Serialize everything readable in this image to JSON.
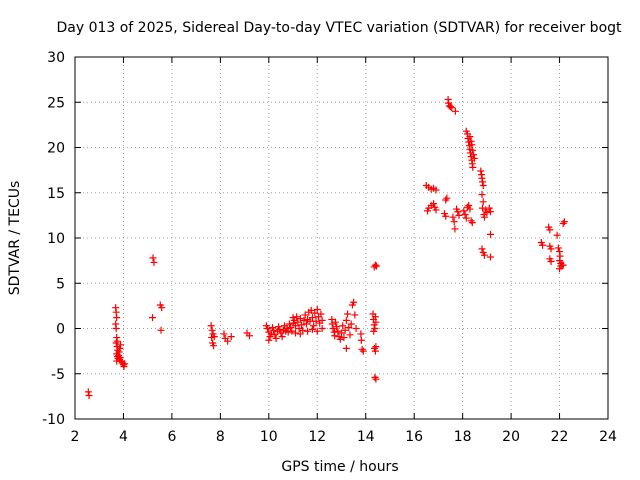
{
  "chart_data": {
    "type": "scatter",
    "title": "Day 013 of 2025, Sidereal Day-to-day VTEC variation (SDTVAR) for receiver bogt",
    "xlabel": "GPS time / hours",
    "ylabel": "SDTVAR / TECUs",
    "xlim": [
      2,
      24
    ],
    "ylim": [
      -10,
      30
    ],
    "xticks": [
      2,
      4,
      6,
      8,
      10,
      12,
      14,
      16,
      18,
      20,
      22,
      24
    ],
    "yticks": [
      -10,
      -5,
      0,
      5,
      10,
      15,
      20,
      25,
      30
    ],
    "grid": true,
    "marker": "plus",
    "color": "#ff0000",
    "series": [
      {
        "name": "SDTVAR",
        "points": [
          [
            2.55,
            -7.0
          ],
          [
            2.58,
            -7.4
          ],
          [
            3.68,
            2.3
          ],
          [
            3.7,
            1.8
          ],
          [
            3.72,
            1.2
          ],
          [
            3.68,
            0.5
          ],
          [
            3.7,
            0.0
          ],
          [
            3.72,
            -1.0
          ],
          [
            3.7,
            -1.6
          ],
          [
            3.74,
            -2.0
          ],
          [
            3.76,
            -2.4
          ],
          [
            3.72,
            -2.8
          ],
          [
            3.75,
            -3.1
          ],
          [
            3.78,
            -3.3
          ],
          [
            3.72,
            -3.6
          ],
          [
            3.8,
            -3.0
          ],
          [
            3.82,
            -2.6
          ],
          [
            3.85,
            -2.2
          ],
          [
            3.88,
            -1.8
          ],
          [
            3.84,
            -3.4
          ],
          [
            3.9,
            -3.6
          ],
          [
            3.95,
            -3.8
          ],
          [
            4.0,
            -4.0
          ],
          [
            4.05,
            -3.9
          ],
          [
            4.02,
            -4.2
          ],
          [
            3.86,
            -3.2
          ],
          [
            3.74,
            -1.4
          ],
          [
            5.22,
            7.8
          ],
          [
            5.26,
            7.3
          ],
          [
            5.2,
            1.2
          ],
          [
            5.52,
            2.6
          ],
          [
            5.58,
            2.3
          ],
          [
            5.55,
            -0.2
          ],
          [
            7.62,
            0.3
          ],
          [
            7.66,
            -0.2
          ],
          [
            7.7,
            -0.6
          ],
          [
            7.64,
            -1.0
          ],
          [
            7.68,
            -1.6
          ],
          [
            7.72,
            -1.9
          ],
          [
            7.75,
            -0.9
          ],
          [
            8.15,
            -0.6
          ],
          [
            8.2,
            -1.1
          ],
          [
            8.3,
            -1.4
          ],
          [
            8.45,
            -0.9
          ],
          [
            9.1,
            -0.5
          ],
          [
            9.2,
            -0.8
          ],
          [
            9.9,
            0.3
          ],
          [
            9.95,
            0.0
          ],
          [
            10.0,
            -0.4
          ],
          [
            10.05,
            -0.9
          ],
          [
            10.0,
            -1.3
          ],
          [
            10.1,
            -0.6
          ],
          [
            10.15,
            0.1
          ],
          [
            10.2,
            -0.2
          ],
          [
            10.25,
            -0.7
          ],
          [
            10.3,
            -1.1
          ],
          [
            10.35,
            -0.3
          ],
          [
            10.4,
            0.2
          ],
          [
            10.45,
            -0.1
          ],
          [
            10.5,
            -0.5
          ],
          [
            10.55,
            -0.9
          ],
          [
            10.6,
            -0.2
          ],
          [
            10.65,
            0.3
          ],
          [
            10.7,
            -0.3
          ],
          [
            10.75,
            0.0
          ],
          [
            10.8,
            -0.4
          ],
          [
            10.85,
            0.5
          ],
          [
            10.9,
            0.1
          ],
          [
            10.95,
            -0.3
          ],
          [
            11.0,
            1.2
          ],
          [
            11.02,
            0.6
          ],
          [
            11.05,
            0.9
          ],
          [
            11.1,
            0.3
          ],
          [
            11.15,
            1.3
          ],
          [
            11.2,
            0.7
          ],
          [
            11.25,
            0.0
          ],
          [
            11.3,
            1.1
          ],
          [
            11.35,
            0.4
          ],
          [
            11.4,
            -0.2
          ],
          [
            11.45,
            0.9
          ],
          [
            11.5,
            1.5
          ],
          [
            11.55,
            0.5
          ],
          [
            11.6,
            1.0
          ],
          [
            11.65,
            1.8
          ],
          [
            11.7,
            0.8
          ],
          [
            11.75,
            2.0
          ],
          [
            11.8,
            1.2
          ],
          [
            11.85,
            0.3
          ],
          [
            11.9,
            1.7
          ],
          [
            11.95,
            0.8
          ],
          [
            12.0,
            2.1
          ],
          [
            12.05,
            1.3
          ],
          [
            12.1,
            0.6
          ],
          [
            12.15,
            1.6
          ],
          [
            12.2,
            0.9
          ],
          [
            11.1,
            -0.5
          ],
          [
            11.3,
            -0.6
          ],
          [
            11.6,
            -0.3
          ],
          [
            11.8,
            -0.1
          ],
          [
            12.0,
            -0.3
          ],
          [
            12.2,
            0.0
          ],
          [
            12.6,
            1.0
          ],
          [
            12.62,
            0.5
          ],
          [
            12.65,
            0.0
          ],
          [
            12.7,
            -0.4
          ],
          [
            12.72,
            -0.8
          ],
          [
            12.75,
            0.7
          ],
          [
            12.8,
            0.2
          ],
          [
            12.85,
            -0.3
          ],
          [
            12.9,
            -0.9
          ],
          [
            12.95,
            -1.2
          ],
          [
            13.0,
            -0.5
          ],
          [
            13.05,
            0.3
          ],
          [
            13.1,
            -1.0
          ],
          [
            13.15,
            -0.2
          ],
          [
            13.2,
            0.9
          ],
          [
            13.25,
            1.6
          ],
          [
            13.3,
            0.1
          ],
          [
            13.35,
            -0.7
          ],
          [
            13.4,
            0.5
          ],
          [
            13.45,
            2.6
          ],
          [
            13.5,
            2.9
          ],
          [
            13.55,
            1.5
          ],
          [
            13.6,
            0.0
          ],
          [
            13.8,
            -0.6
          ],
          [
            13.82,
            -1.3
          ],
          [
            13.85,
            -2.3
          ],
          [
            13.9,
            -2.5
          ],
          [
            13.2,
            -2.2
          ],
          [
            14.3,
            1.6
          ],
          [
            14.32,
            1.0
          ],
          [
            14.35,
            0.4
          ],
          [
            14.33,
            -0.3
          ],
          [
            14.38,
            0.0
          ],
          [
            14.4,
            1.3
          ],
          [
            14.42,
            0.7
          ],
          [
            14.36,
            -2.2
          ],
          [
            14.4,
            -2.5
          ],
          [
            14.42,
            -2.0
          ],
          [
            14.38,
            -5.4
          ],
          [
            14.42,
            -5.6
          ],
          [
            14.35,
            6.8
          ],
          [
            14.4,
            7.0
          ],
          [
            14.44,
            6.9
          ],
          [
            16.5,
            15.8
          ],
          [
            16.6,
            15.6
          ],
          [
            16.7,
            15.4
          ],
          [
            16.8,
            15.5
          ],
          [
            16.9,
            15.3
          ],
          [
            16.55,
            13.0
          ],
          [
            16.6,
            13.3
          ],
          [
            16.7,
            13.6
          ],
          [
            16.8,
            13.8
          ],
          [
            16.85,
            13.4
          ],
          [
            16.9,
            13.1
          ],
          [
            17.3,
            14.2
          ],
          [
            17.35,
            14.4
          ],
          [
            17.25,
            12.7
          ],
          [
            17.3,
            12.4
          ],
          [
            17.4,
            25.3
          ],
          [
            17.42,
            24.9
          ],
          [
            17.45,
            24.6
          ],
          [
            17.5,
            24.5
          ],
          [
            17.55,
            24.4
          ],
          [
            17.7,
            24.0
          ],
          [
            17.6,
            12.3
          ],
          [
            17.65,
            11.8
          ],
          [
            17.68,
            11.0
          ],
          [
            17.75,
            13.2
          ],
          [
            17.8,
            12.9
          ],
          [
            17.85,
            12.5
          ],
          [
            18.05,
            13.0
          ],
          [
            18.1,
            12.6
          ],
          [
            18.15,
            12.2
          ],
          [
            18.2,
            13.4
          ],
          [
            18.25,
            13.6
          ],
          [
            18.3,
            13.2
          ],
          [
            18.35,
            11.9
          ],
          [
            18.4,
            11.7
          ],
          [
            18.15,
            21.8
          ],
          [
            18.2,
            21.5
          ],
          [
            18.22,
            21.0
          ],
          [
            18.25,
            20.6
          ],
          [
            18.28,
            20.2
          ],
          [
            18.3,
            19.8
          ],
          [
            18.32,
            19.4
          ],
          [
            18.35,
            19.0
          ],
          [
            18.38,
            18.6
          ],
          [
            18.4,
            18.2
          ],
          [
            18.42,
            17.8
          ],
          [
            18.3,
            21.2
          ],
          [
            18.35,
            20.7
          ],
          [
            18.38,
            20.3
          ],
          [
            18.4,
            19.7
          ],
          [
            18.45,
            19.2
          ],
          [
            18.48,
            18.8
          ],
          [
            18.75,
            17.4
          ],
          [
            18.78,
            17.0
          ],
          [
            18.8,
            16.6
          ],
          [
            18.82,
            16.2
          ],
          [
            18.85,
            15.8
          ],
          [
            18.8,
            14.8
          ],
          [
            18.85,
            14.0
          ],
          [
            18.82,
            13.3
          ],
          [
            18.88,
            12.6
          ],
          [
            18.9,
            12.3
          ],
          [
            18.95,
            13.1
          ],
          [
            19.0,
            12.8
          ],
          [
            18.8,
            8.8
          ],
          [
            18.85,
            8.4
          ],
          [
            18.9,
            8.1
          ],
          [
            19.1,
            13.3
          ],
          [
            19.15,
            12.9
          ],
          [
            19.15,
            10.4
          ],
          [
            19.15,
            7.9
          ],
          [
            21.25,
            9.5
          ],
          [
            21.3,
            9.2
          ],
          [
            21.55,
            11.2
          ],
          [
            21.6,
            10.9
          ],
          [
            21.6,
            9.1
          ],
          [
            21.65,
            8.8
          ],
          [
            21.6,
            7.7
          ],
          [
            21.65,
            7.4
          ],
          [
            21.9,
            10.3
          ],
          [
            21.95,
            8.9
          ],
          [
            22.0,
            8.5
          ],
          [
            22.02,
            8.0
          ],
          [
            22.0,
            7.5
          ],
          [
            22.05,
            7.2
          ],
          [
            22.1,
            7.0
          ],
          [
            22.0,
            6.6
          ],
          [
            22.05,
            6.9
          ],
          [
            22.15,
            7.0
          ],
          [
            22.2,
            11.8
          ],
          [
            22.15,
            11.6
          ]
        ]
      }
    ]
  }
}
